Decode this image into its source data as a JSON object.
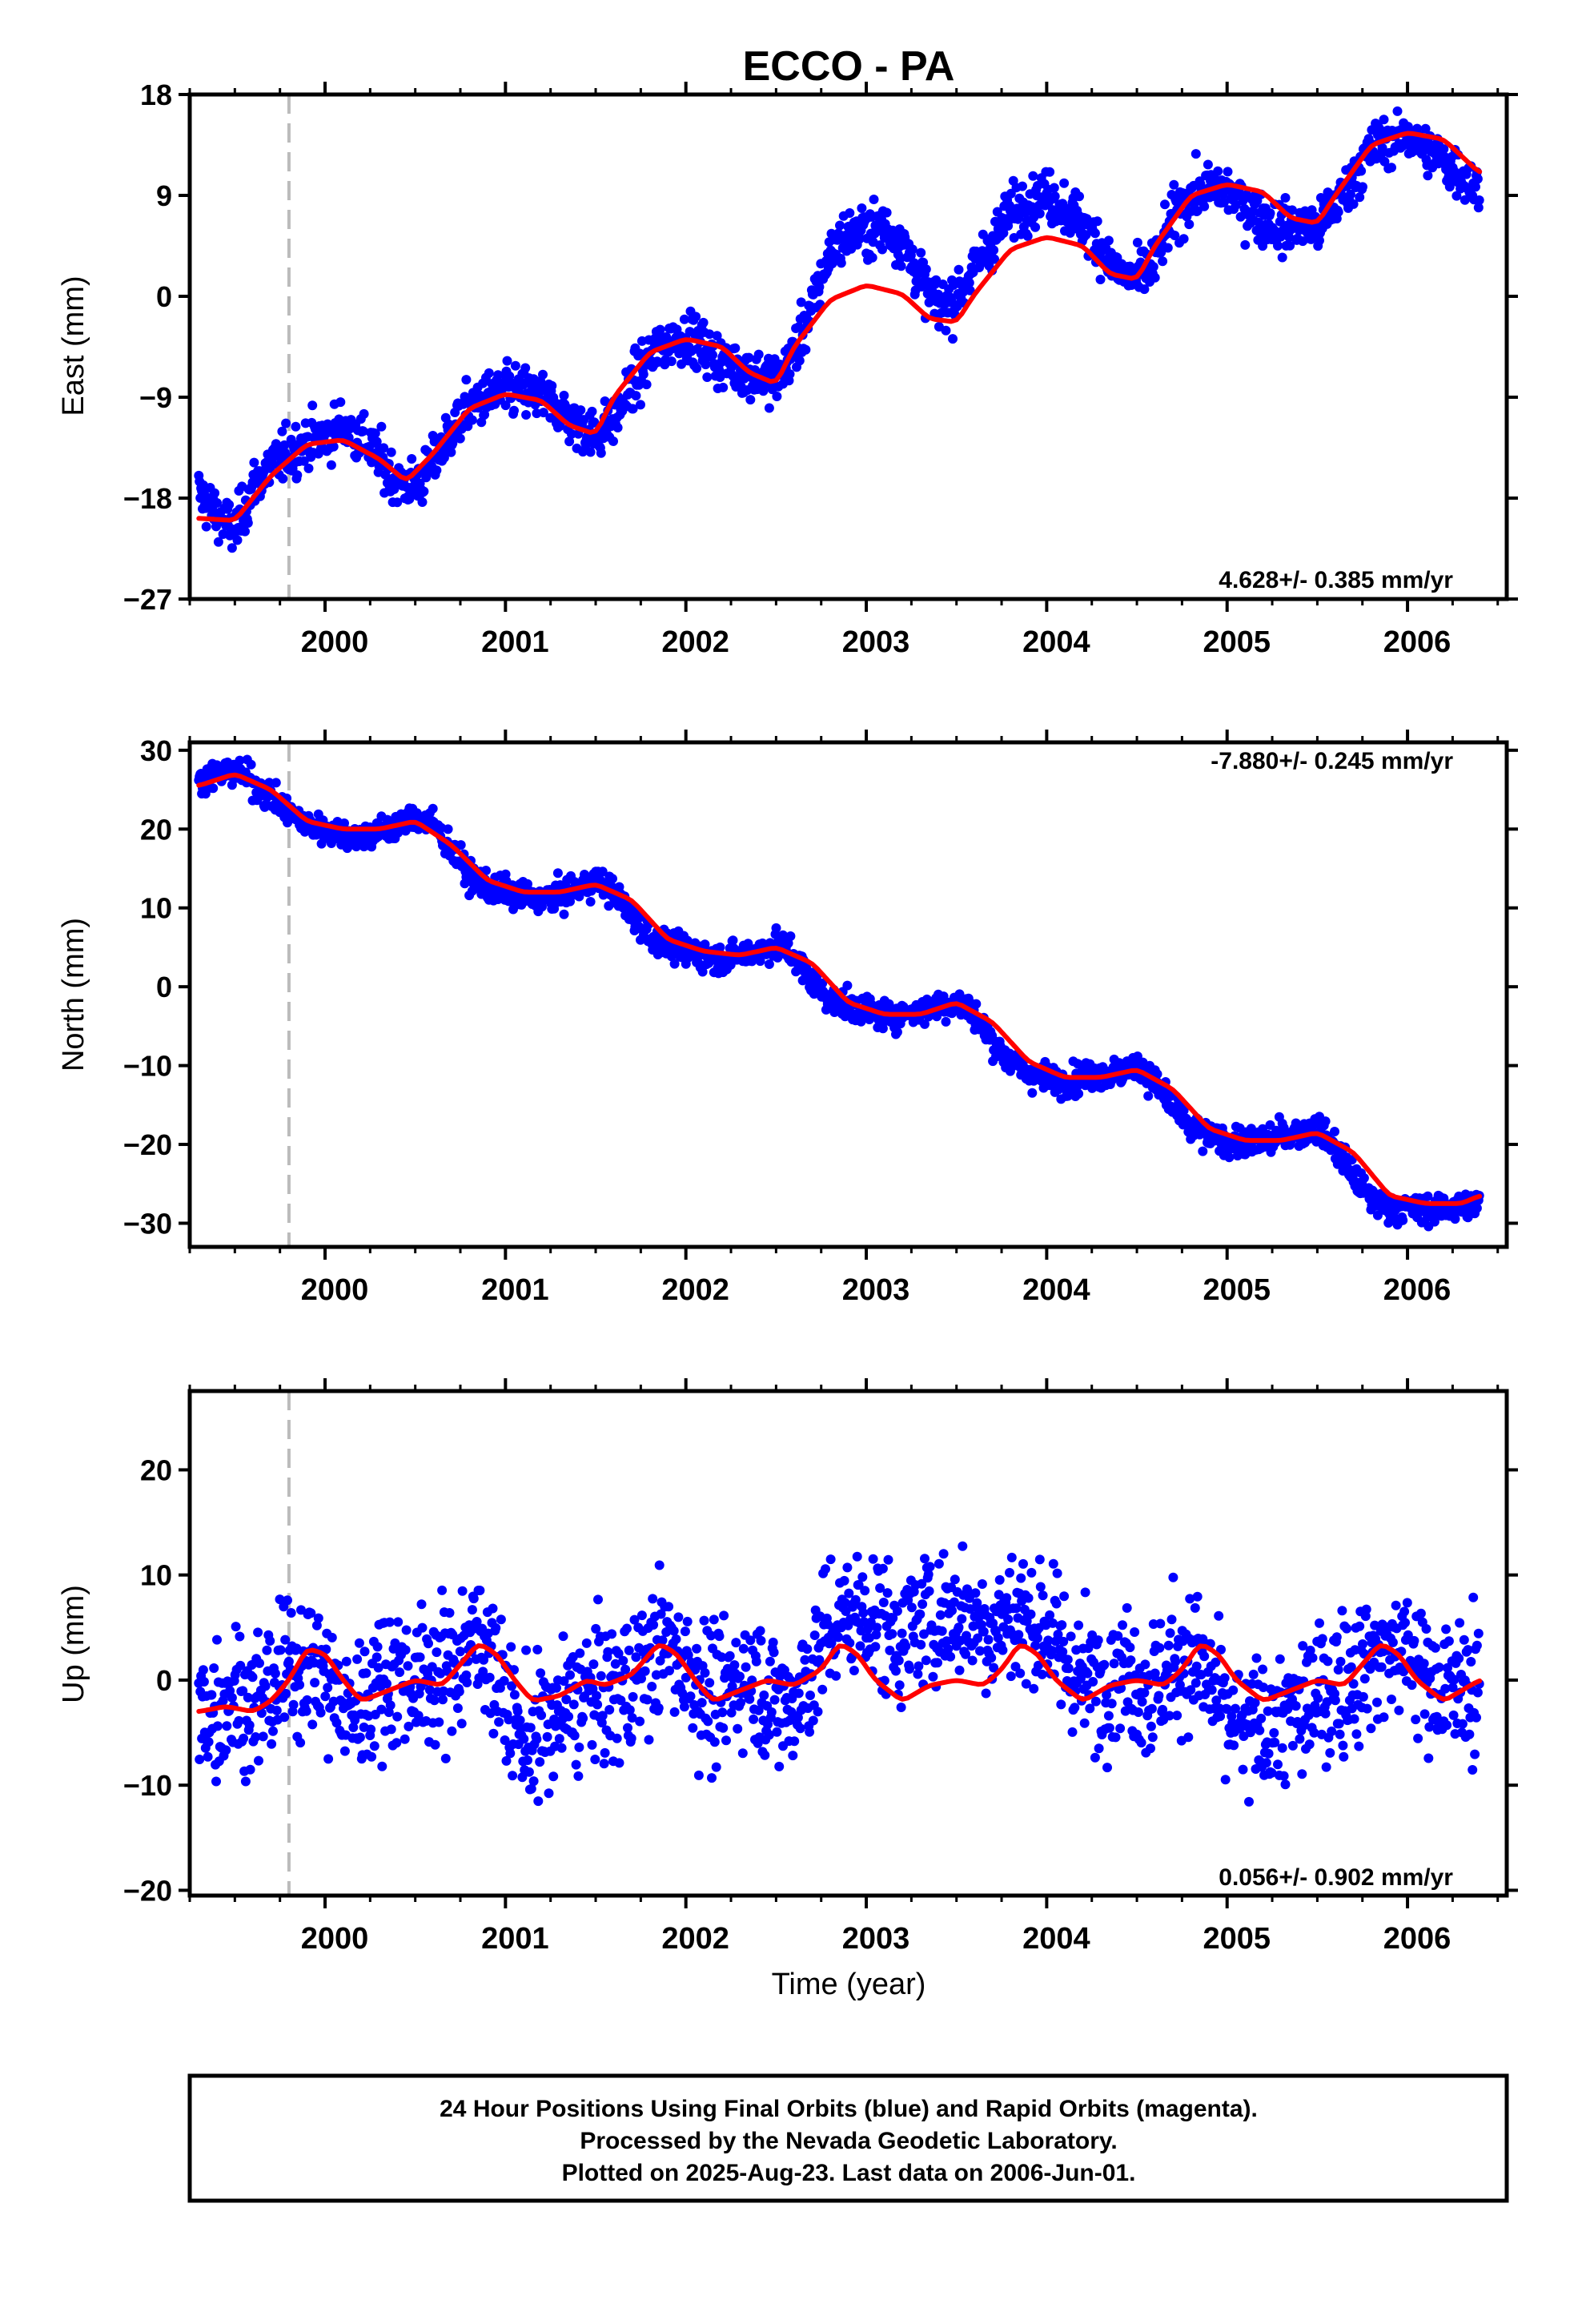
{
  "title": "ECCO - PA",
  "colors": {
    "points": "#0000ff",
    "model": "#ff0000",
    "marker": "#bbbbbb",
    "frame": "#000000"
  },
  "chart_data": [
    {
      "type": "scatter",
      "panel": "east",
      "ylabel": "East (mm)",
      "ylim": [
        -27,
        18
      ],
      "yticks": [
        18,
        9,
        0,
        -9,
        -18,
        -27
      ],
      "ytick_labels": [
        "18",
        "9",
        "0",
        "−9",
        "−18",
        "−27"
      ],
      "xlim": [
        1999.25,
        2006.55
      ],
      "xticks": [
        2000,
        2001,
        2002,
        2003,
        2004,
        2005,
        2006
      ],
      "xtick_labels": [
        "2000",
        "2001",
        "2002",
        "2003",
        "2004",
        "2005",
        "2006"
      ],
      "rate_text": "4.628+/- 0.385 mm/yr",
      "rate_position": "bottom-right",
      "marker_line_x": 1999.8,
      "series": [
        {
          "kind": "model",
          "x": [
            1999.3,
            1999.5,
            1999.7,
            1999.9,
            2000.1,
            2000.3,
            2000.45,
            2000.6,
            2000.8,
            2001.0,
            2001.2,
            2001.35,
            2001.5,
            2001.6,
            2001.8,
            2002.0,
            2002.2,
            2002.35,
            2002.5,
            2002.6,
            2002.8,
            2003.0,
            2003.2,
            2003.35,
            2003.5,
            2003.6,
            2003.8,
            2004.0,
            2004.2,
            2004.35,
            2004.5,
            2004.6,
            2004.8,
            2005.0,
            2005.2,
            2005.35,
            2005.5,
            2005.6,
            2005.8,
            2006.0,
            2006.2,
            2006.4
          ],
          "y": [
            -19.8,
            -20.0,
            -16.0,
            -13.2,
            -12.8,
            -14.5,
            -16.5,
            -14.0,
            -10.0,
            -8.7,
            -9.3,
            -11.5,
            -12.3,
            -9.0,
            -5.0,
            -3.8,
            -4.5,
            -6.8,
            -7.8,
            -4.5,
            -0.3,
            1.0,
            0.2,
            -2.0,
            -2.3,
            0.2,
            4.2,
            5.3,
            4.5,
            2.0,
            1.5,
            4.5,
            9.0,
            10.0,
            9.3,
            7.0,
            6.5,
            9.0,
            13.5,
            14.6,
            14.0,
            11.0
          ]
        },
        {
          "kind": "points",
          "x": [
            1999.3,
            1999.4,
            1999.5,
            1999.6,
            1999.7,
            1999.8,
            1999.9,
            2000.0,
            2000.1,
            2000.2,
            2000.3,
            2000.4,
            2000.5,
            2000.6,
            2000.7,
            2000.8,
            2000.9,
            2001.0,
            2001.1,
            2001.2,
            2001.3,
            2001.4,
            2001.5,
            2001.6,
            2001.7,
            2001.8,
            2001.9,
            2002.0,
            2002.1,
            2002.2,
            2002.3,
            2002.4,
            2002.5,
            2002.6,
            2002.7,
            2002.8,
            2002.9,
            2003.0,
            2003.1,
            2003.2,
            2003.3,
            2003.4,
            2003.5,
            2003.6,
            2003.7,
            2003.8,
            2003.9,
            2004.0,
            2004.1,
            2004.2,
            2004.3,
            2004.4,
            2004.5,
            2004.6,
            2004.7,
            2004.8,
            2004.9,
            2005.0,
            2005.1,
            2005.2,
            2005.3,
            2005.4,
            2005.5,
            2005.6,
            2005.7,
            2005.8,
            2005.9,
            2006.0,
            2006.1,
            2006.2,
            2006.3,
            2006.4
          ],
          "y": [
            -17.5,
            -19.5,
            -21.0,
            -17.0,
            -15.0,
            -14.0,
            -13.0,
            -12.5,
            -11.5,
            -12.5,
            -14.5,
            -16.5,
            -17.0,
            -15.0,
            -12.0,
            -10.0,
            -9.0,
            -8.5,
            -8.5,
            -9.0,
            -10.0,
            -11.5,
            -12.5,
            -11.0,
            -8.0,
            -5.5,
            -4.0,
            -3.5,
            -4.5,
            -6.0,
            -6.5,
            -7.0,
            -7.5,
            -5.0,
            -1.0,
            4.0,
            5.5,
            6.0,
            6.0,
            5.0,
            1.5,
            -1.0,
            0.0,
            2.5,
            5.0,
            7.5,
            8.5,
            9.0,
            8.0,
            6.5,
            4.5,
            2.0,
            1.5,
            3.0,
            7.0,
            9.0,
            9.5,
            9.5,
            8.0,
            7.0,
            6.0,
            6.5,
            6.0,
            8.0,
            10.5,
            13.0,
            14.0,
            14.5,
            13.0,
            12.0,
            11.0,
            9.5
          ]
        }
      ]
    },
    {
      "type": "scatter",
      "panel": "north",
      "ylabel": "North (mm)",
      "ylim": [
        -33,
        31
      ],
      "yticks": [
        30,
        20,
        10,
        0,
        -10,
        -20,
        -30
      ],
      "ytick_labels": [
        "30",
        "20",
        "10",
        "0",
        "−10",
        "−20",
        "−30"
      ],
      "xlim": [
        1999.25,
        2006.55
      ],
      "xticks": [
        2000,
        2001,
        2002,
        2003,
        2004,
        2005,
        2006
      ],
      "xtick_labels": [
        "2000",
        "2001",
        "2002",
        "2003",
        "2004",
        "2005",
        "2006"
      ],
      "rate_text": "-7.880+/- 0.245 mm/yr",
      "rate_position": "top-right",
      "marker_line_x": 1999.8,
      "series": [
        {
          "kind": "model",
          "x": [
            1999.3,
            1999.5,
            1999.7,
            1999.9,
            2000.1,
            2000.3,
            2000.5,
            2000.7,
            2000.9,
            2001.1,
            2001.3,
            2001.5,
            2001.7,
            2001.9,
            2002.1,
            2002.3,
            2002.5,
            2002.7,
            2002.9,
            2003.1,
            2003.3,
            2003.5,
            2003.7,
            2003.9,
            2004.1,
            2004.3,
            2004.5,
            2004.7,
            2004.9,
            2005.1,
            2005.3,
            2005.5,
            2005.7,
            2005.9,
            2006.1,
            2006.3,
            2006.4
          ],
          "y": [
            25.5,
            27.0,
            25.0,
            21.0,
            20.0,
            20.0,
            21.0,
            18.0,
            13.5,
            12.0,
            12.0,
            13.0,
            11.0,
            6.0,
            4.5,
            4.0,
            5.0,
            3.0,
            -2.0,
            -3.5,
            -3.5,
            -2.0,
            -4.5,
            -9.5,
            -11.5,
            -11.5,
            -10.5,
            -13.0,
            -18.0,
            -19.5,
            -19.5,
            -18.5,
            -21.0,
            -26.5,
            -27.5,
            -27.5,
            -26.5
          ]
        },
        {
          "kind": "points",
          "x": [
            1999.3,
            1999.4,
            1999.5,
            1999.6,
            1999.7,
            1999.8,
            1999.9,
            2000.0,
            2000.1,
            2000.2,
            2000.3,
            2000.4,
            2000.5,
            2000.6,
            2000.7,
            2000.8,
            2000.9,
            2001.0,
            2001.1,
            2001.2,
            2001.3,
            2001.4,
            2001.5,
            2001.6,
            2001.7,
            2001.8,
            2001.9,
            2002.0,
            2002.1,
            2002.2,
            2002.3,
            2002.4,
            2002.5,
            2002.6,
            2002.7,
            2002.8,
            2002.9,
            2003.0,
            2003.1,
            2003.2,
            2003.3,
            2003.4,
            2003.5,
            2003.6,
            2003.7,
            2003.8,
            2003.9,
            2004.0,
            2004.1,
            2004.2,
            2004.3,
            2004.4,
            2004.5,
            2004.6,
            2004.7,
            2004.8,
            2004.9,
            2005.0,
            2005.1,
            2005.2,
            2005.3,
            2005.4,
            2005.5,
            2005.6,
            2005.7,
            2005.8,
            2005.9,
            2006.0,
            2006.1,
            2006.2,
            2006.3,
            2006.4
          ],
          "y": [
            26.0,
            27.0,
            27.5,
            26.0,
            24.0,
            22.0,
            20.5,
            20.0,
            19.5,
            19.0,
            19.5,
            20.5,
            21.5,
            20.5,
            17.5,
            14.0,
            12.5,
            12.0,
            11.5,
            11.0,
            11.5,
            12.5,
            13.5,
            12.0,
            9.0,
            6.5,
            5.0,
            4.5,
            4.0,
            3.5,
            4.0,
            4.5,
            5.5,
            4.0,
            0.5,
            -1.5,
            -2.5,
            -3.0,
            -3.5,
            -3.5,
            -3.0,
            -2.5,
            -2.0,
            -3.5,
            -7.0,
            -9.5,
            -11.0,
            -11.5,
            -12.0,
            -11.5,
            -11.0,
            -11.0,
            -10.0,
            -12.0,
            -15.5,
            -18.0,
            -19.0,
            -19.5,
            -20.0,
            -19.5,
            -19.0,
            -18.5,
            -18.0,
            -20.5,
            -24.0,
            -27.0,
            -28.0,
            -28.0,
            -28.5,
            -28.0,
            -28.0,
            -27.5
          ]
        }
      ]
    },
    {
      "type": "scatter",
      "panel": "up",
      "ylabel": "Up (mm)",
      "xlabel": "Time (year)",
      "ylim": [
        -20.5,
        27.5
      ],
      "yticks": [
        20,
        10,
        0,
        -10,
        -20
      ],
      "ytick_labels": [
        "20",
        "10",
        "0",
        "−10",
        "−20"
      ],
      "xlim": [
        1999.25,
        2006.55
      ],
      "xticks": [
        2000,
        2001,
        2002,
        2003,
        2004,
        2005,
        2006
      ],
      "xtick_labels": [
        "2000",
        "2001",
        "2002",
        "2003",
        "2004",
        "2005",
        "2006"
      ],
      "rate_text": "0.056+/- 0.902 mm/yr",
      "rate_position": "bottom-right",
      "marker_line_x": 1999.8,
      "series": [
        {
          "kind": "model",
          "x": [
            1999.3,
            1999.45,
            1999.6,
            1999.7,
            1999.8,
            1999.9,
            2000.0,
            2000.1,
            2000.2,
            2000.35,
            2000.5,
            2000.65,
            2000.75,
            2000.85,
            2000.95,
            2001.05,
            2001.15,
            2001.3,
            2001.45,
            2001.55,
            2001.7,
            2001.85,
            2001.95,
            2002.05,
            2002.15,
            2002.3,
            2002.45,
            2002.6,
            2002.75,
            2002.85,
            2002.95,
            2003.05,
            2003.2,
            2003.35,
            2003.5,
            2003.65,
            2003.75,
            2003.85,
            2003.95,
            2004.05,
            2004.2,
            2004.35,
            2004.5,
            2004.65,
            2004.75,
            2004.85,
            2004.95,
            2005.05,
            2005.2,
            2005.35,
            2005.5,
            2005.65,
            2005.75,
            2005.85,
            2005.95,
            2006.05,
            2006.2,
            2006.3,
            2006.4
          ],
          "y": [
            -3.0,
            -2.5,
            -3.0,
            -2.0,
            0.0,
            3.0,
            2.5,
            0.0,
            -2.0,
            -1.0,
            0.0,
            -0.5,
            1.5,
            3.5,
            2.5,
            0.0,
            -2.0,
            -1.5,
            0.0,
            -0.5,
            0.5,
            3.5,
            2.5,
            0.0,
            -2.0,
            -1.0,
            0.0,
            -0.5,
            1.0,
            3.5,
            2.5,
            0.0,
            -2.0,
            -0.5,
            0.0,
            -0.5,
            1.0,
            3.5,
            2.5,
            0.0,
            -2.0,
            -0.5,
            0.0,
            -0.5,
            1.0,
            3.5,
            2.5,
            0.0,
            -2.0,
            -1.0,
            0.0,
            -0.5,
            1.5,
            3.5,
            2.5,
            0.0,
            -2.0,
            -1.0,
            0.0
          ]
        },
        {
          "kind": "points",
          "x": [
            1999.3,
            1999.4,
            1999.5,
            1999.6,
            1999.7,
            1999.8,
            1999.9,
            2000.0,
            2000.1,
            2000.2,
            2000.3,
            2000.4,
            2000.5,
            2000.6,
            2000.7,
            2000.8,
            2000.9,
            2001.0,
            2001.1,
            2001.2,
            2001.3,
            2001.4,
            2001.5,
            2001.6,
            2001.7,
            2001.8,
            2001.9,
            2002.0,
            2002.1,
            2002.2,
            2002.3,
            2002.4,
            2002.5,
            2002.6,
            2002.7,
            2002.8,
            2002.9,
            2003.0,
            2003.1,
            2003.2,
            2003.3,
            2003.4,
            2003.5,
            2003.6,
            2003.7,
            2003.8,
            2003.9,
            2004.0,
            2004.1,
            2004.2,
            2004.3,
            2004.4,
            2004.5,
            2004.6,
            2004.7,
            2004.8,
            2004.9,
            2005.0,
            2005.1,
            2005.2,
            2005.3,
            2005.4,
            2005.5,
            2005.6,
            2005.7,
            2005.8,
            2005.9,
            2006.0,
            2006.1,
            2006.2,
            2006.3,
            2006.4
          ],
          "y": [
            -3.0,
            -2.5,
            -1.0,
            -3.0,
            -1.0,
            1.0,
            2.0,
            0.5,
            -3.0,
            -2.5,
            0.0,
            1.0,
            -0.5,
            0.5,
            1.0,
            3.5,
            4.0,
            -2.0,
            -6.0,
            -5.0,
            -3.5,
            -2.0,
            -1.0,
            -1.5,
            0.0,
            2.0,
            3.5,
            1.5,
            -1.0,
            -2.0,
            0.5,
            0.0,
            -2.5,
            -2.0,
            1.0,
            5.0,
            6.0,
            6.5,
            5.0,
            4.0,
            5.5,
            6.0,
            6.5,
            6.0,
            5.0,
            6.5,
            5.5,
            5.0,
            2.0,
            0.0,
            0.0,
            1.5,
            0.0,
            -1.0,
            1.5,
            2.5,
            0.0,
            -4.0,
            -5.0,
            -4.5,
            -4.0,
            -3.0,
            -1.5,
            -0.5,
            0.5,
            2.0,
            3.0,
            2.5,
            0.5,
            -1.0,
            -1.0,
            0.0
          ]
        }
      ]
    }
  ],
  "footer": {
    "line1": "24 Hour Positions Using Final Orbits (blue) and Rapid Orbits (magenta).",
    "line2": "Processed by the Nevada Geodetic Laboratory.",
    "line3": "Plotted on 2025-Aug-23. Last data on 2006-Jun-01."
  }
}
